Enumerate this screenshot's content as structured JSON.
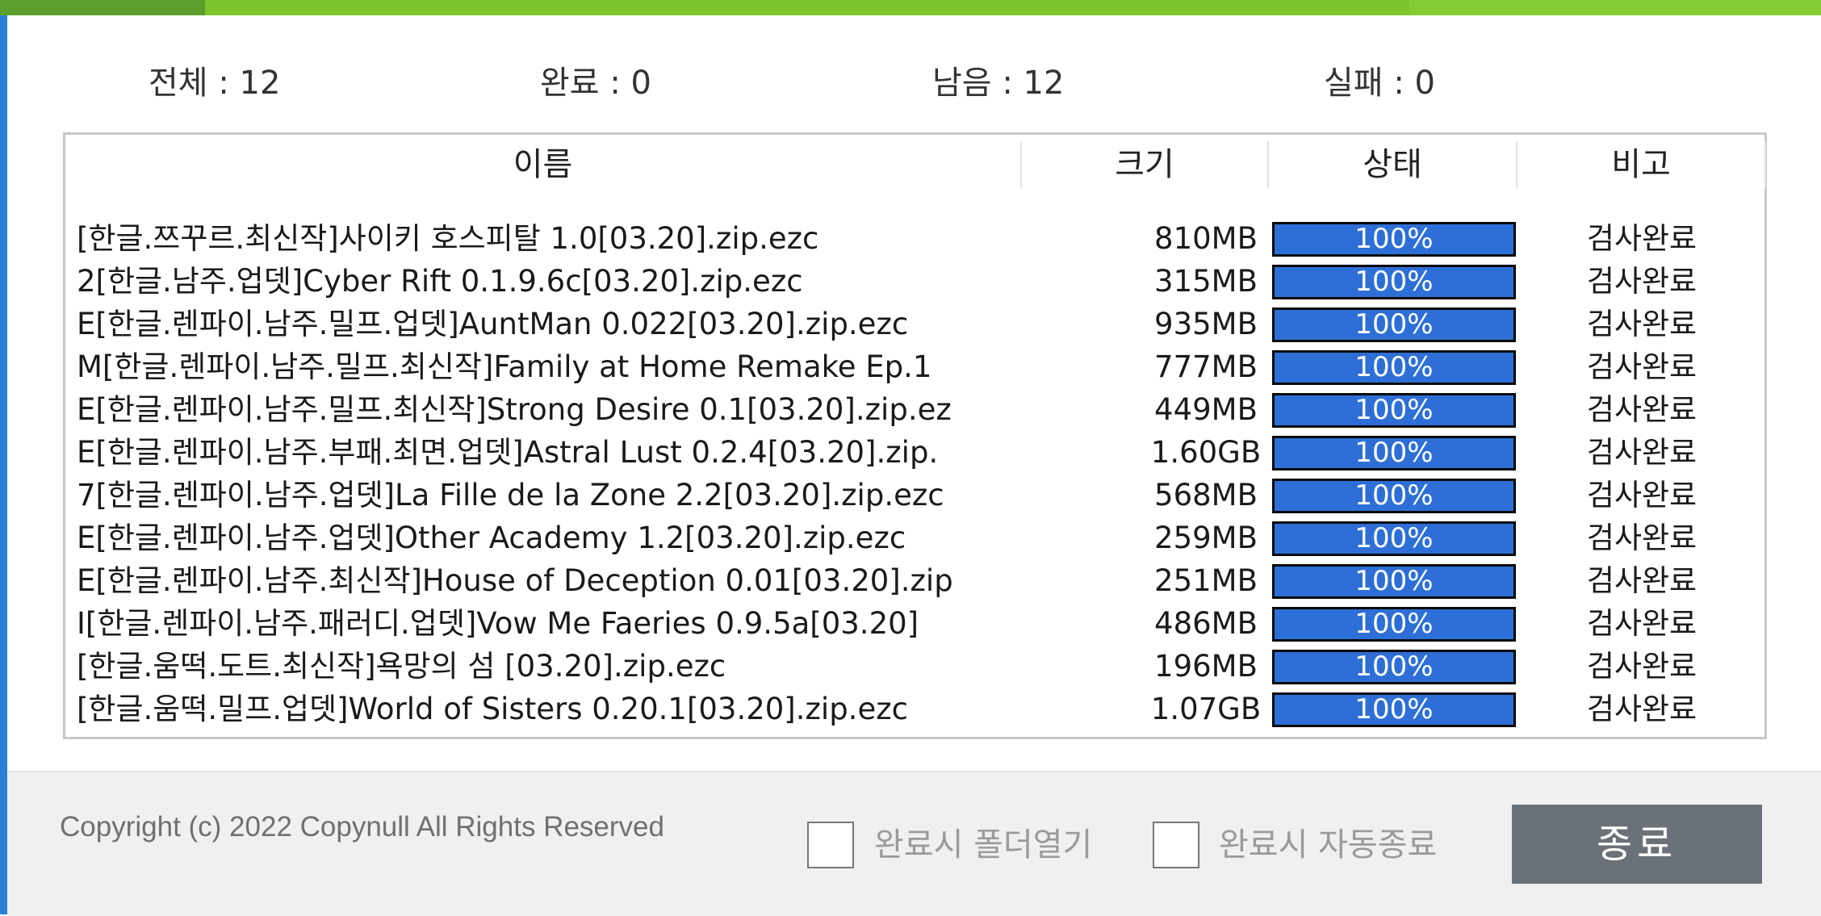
{
  "summary": {
    "total": "전체 : 12",
    "done": "완료 : 0",
    "remaining": "남음 : 12",
    "failed": "실패 : 0"
  },
  "table": {
    "headers": {
      "name": "이름",
      "size": "크기",
      "status": "상태",
      "note": "비고"
    },
    "rows": [
      {
        "name": " [한글.쯔꾸르.최신작]사이키 호스피탈 1.0[03.20].zip.ezc",
        "size": "810MB",
        "status": "100%",
        "note": "검사완료"
      },
      {
        "name": "2[한글.남주.업뎃]Cyber Rift 0.1.9.6c[03.20].zip.ezc",
        "size": "315MB",
        "status": "100%",
        "note": "검사완료"
      },
      {
        "name": "E[한글.렌파이.남주.밀프.업뎃]AuntMan 0.022[03.20].zip.ezc",
        "size": "935MB",
        "status": "100%",
        "note": "검사완료"
      },
      {
        "name": "M[한글.렌파이.남주.밀프.최신작]Family at Home Remake Ep.1",
        "size": "777MB",
        "status": "100%",
        "note": "검사완료"
      },
      {
        "name": "E[한글.렌파이.남주.밀프.최신작]Strong Desire 0.1[03.20].zip.ez",
        "size": "449MB",
        "status": "100%",
        "note": "검사완료"
      },
      {
        "name": "E[한글.렌파이.남주.부패.최면.업뎃]Astral Lust 0.2.4[03.20].zip.",
        "size": "1.60GB",
        "status": "100%",
        "note": "검사완료"
      },
      {
        "name": "7[한글.렌파이.남주.업뎃]La Fille de la Zone 2.2[03.20].zip.ezc",
        "size": "568MB",
        "status": "100%",
        "note": "검사완료"
      },
      {
        "name": "E[한글.렌파이.남주.업뎃]Other Academy 1.2[03.20].zip.ezc",
        "size": "259MB",
        "status": "100%",
        "note": "검사완료"
      },
      {
        "name": "E[한글.렌파이.남주.최신작]House of Deception 0.01[03.20].zip",
        "size": "251MB",
        "status": "100%",
        "note": "검사완료"
      },
      {
        "name": "I[한글.렌파이.남주.패러디.업뎃]Vow Me Faeries 0.9.5a[03.20]",
        "size": "486MB",
        "status": "100%",
        "note": "검사완료"
      },
      {
        "name": " [한글.움떡.도트.최신작]욕망의 섬 [03.20].zip.ezc",
        "size": "196MB",
        "status": "100%",
        "note": "검사완료"
      },
      {
        "name": " [한글.움떡.밀프.업뎃]World of Sisters 0.20.1[03.20].zip.ezc",
        "size": "1.07GB",
        "status": "100%",
        "note": "검사완료"
      }
    ]
  },
  "footer": {
    "copyright": "Copyright (c) 2022 Copynull All Rights Reserved",
    "open_folder_label": "완료시 폴더열기",
    "auto_close_label": "완료시 자동종료",
    "open_folder_checked": false,
    "auto_close_checked": false,
    "close_button": "종료"
  },
  "colors": {
    "progress_fill": "#2d6fd6",
    "title_bar_green": "#7cc52c",
    "button_gray": "#6b7178"
  }
}
